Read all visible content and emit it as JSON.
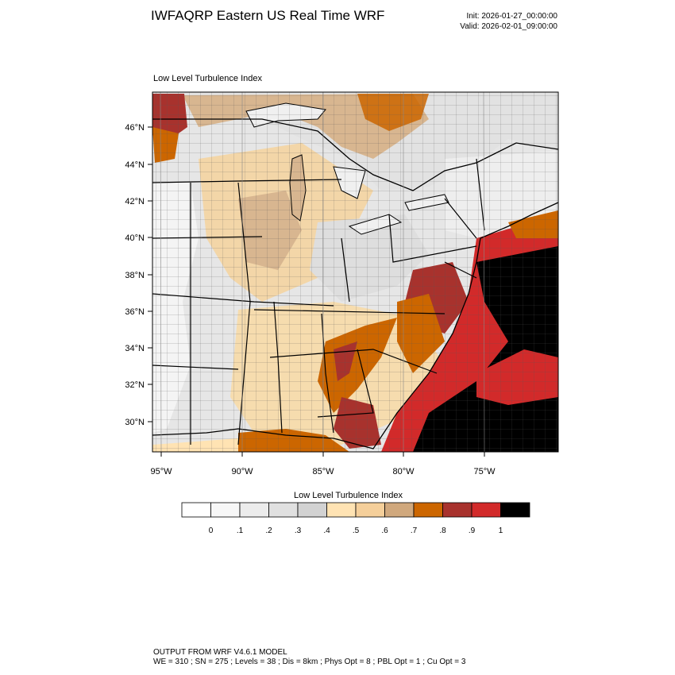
{
  "title": "IWFAQRP Eastern US Real Time WRF",
  "init": "Init: 2026-01-27_00:00:00",
  "valid": "Valid: 2026-02-01_09:00:00",
  "subtitle": "Low Level Turbulence Index",
  "map": {
    "lat_labels": [
      "46°N",
      "44°N",
      "42°N",
      "40°N",
      "38°N",
      "36°N",
      "34°N",
      "32°N",
      "30°N"
    ],
    "lon_labels": [
      "95°W",
      "90°W",
      "85°W",
      "80°W",
      "75°W"
    ]
  },
  "colorbar": {
    "title": "Low Level Turbulence Index",
    "labels": [
      "0",
      ".1",
      ".2",
      ".3",
      ".4",
      ".5",
      ".6",
      ".7",
      ".8",
      ".9",
      "1"
    ],
    "colors": [
      "#ffffff",
      "#f7f7f7",
      "#ececec",
      "#e0e0e0",
      "#d2d2d2",
      "#ffe3b3",
      "#f5cf9a",
      "#d0a87d",
      "#cc6600",
      "#a8322d",
      "#d22a2a",
      "#000000"
    ]
  },
  "footer": {
    "line1": "OUTPUT FROM WRF V4.6.1 MODEL",
    "line2": "WE = 310 ; SN = 275 ; Levels = 38 ; Dis = 8km ; Phys Opt = 8 ; PBL Opt = 1 ; Cu Opt = 3"
  }
}
